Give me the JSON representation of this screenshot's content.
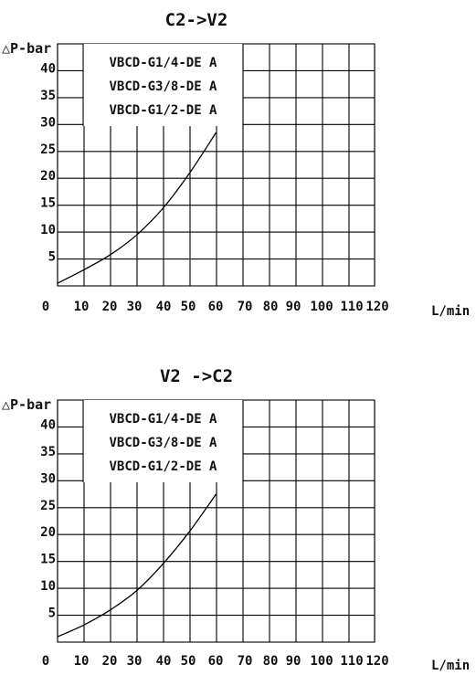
{
  "chart_data": [
    {
      "type": "line",
      "title": "C2->V2",
      "ylabel": "△P-bar",
      "xlabel": "L/min",
      "x_ticks": [
        "0",
        "10",
        "20",
        "30",
        "40",
        "50",
        "60",
        "70",
        "80",
        "90",
        "100",
        "110",
        "120"
      ],
      "y_ticks": [
        "5",
        "10",
        "15",
        "20",
        "25",
        "30",
        "35",
        "40"
      ],
      "xlim": [
        0,
        120
      ],
      "ylim": [
        0,
        45
      ],
      "grid": true,
      "legend_entries": [
        "VBCD-G1/4-DE A",
        "VBCD-G3/8-DE A",
        "VBCD-G1/2-DE A"
      ],
      "series": [
        {
          "x": [
            0,
            10,
            20,
            30,
            40,
            50,
            60
          ],
          "y": [
            0.5,
            3,
            5.8,
            9.5,
            14.5,
            21,
            28.5
          ]
        }
      ]
    },
    {
      "type": "line",
      "title": "V2 ->C2",
      "ylabel": "△P-bar",
      "xlabel": "L/min",
      "x_ticks": [
        "0",
        "10",
        "20",
        "30",
        "40",
        "50",
        "60",
        "70",
        "80",
        "90",
        "100",
        "110",
        "120"
      ],
      "y_ticks": [
        "5",
        "10",
        "15",
        "20",
        "25",
        "30",
        "35",
        "40"
      ],
      "xlim": [
        0,
        120
      ],
      "ylim": [
        0,
        45
      ],
      "grid": true,
      "legend_entries": [
        "VBCD-G1/4-DE A",
        "VBCD-G3/8-DE A",
        "VBCD-G1/2-DE A"
      ],
      "series": [
        {
          "x": [
            0,
            10,
            20,
            30,
            40,
            50,
            60
          ],
          "y": [
            1,
            3.2,
            6,
            9.6,
            14.6,
            20.6,
            27.5
          ]
        }
      ]
    }
  ]
}
